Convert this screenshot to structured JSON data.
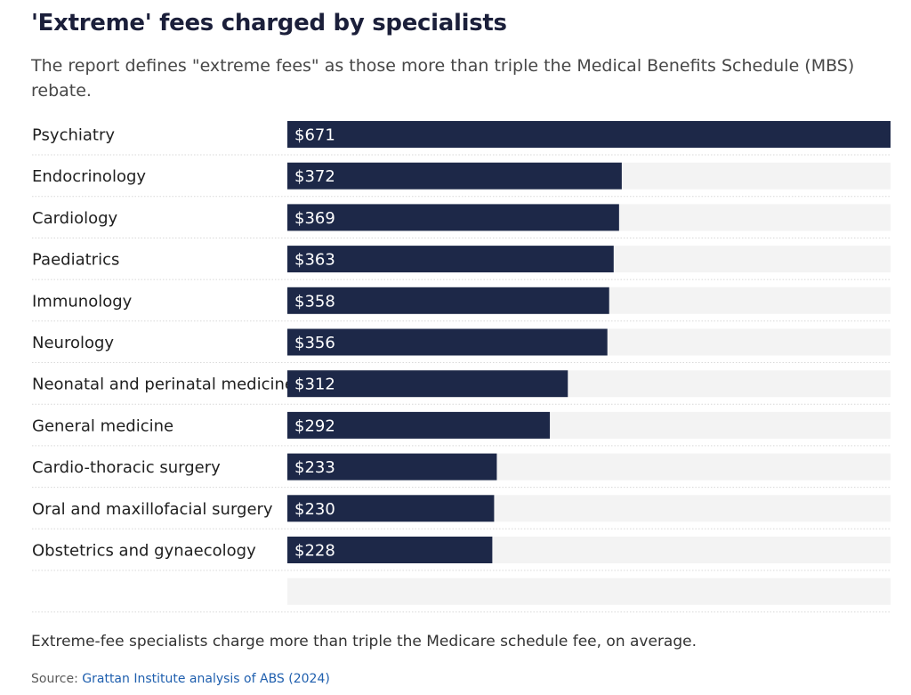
{
  "title": "'Extreme' fees charged by specialists",
  "subtitle": "The report defines \"extreme fees\" as those more than triple the Medical Benefits Schedule (MBS) rebate.",
  "footnote": "Extreme-fee specialists charge more than triple the Medicare schedule fee, on average.",
  "source_label": "Source:",
  "source_link": "Grattan Institute analysis of ABS (2024)",
  "colors": {
    "bar": "#1d2848",
    "track": "#f3f3f3",
    "label_text": "#ffffff",
    "category_text": "#1f1f1f",
    "separator": "#d8d8d8"
  },
  "chart_data": {
    "type": "bar",
    "orientation": "horizontal",
    "categories": [
      "Psychiatry",
      "Endocrinology",
      "Cardiology",
      "Paediatrics",
      "Immunology",
      "Neurology",
      "Neonatal and perinatal medicine",
      "General medicine",
      "Cardio-thoracic surgery",
      "Oral and maxillofacial surgery",
      "Obstetrics and gynaecology",
      ""
    ],
    "values": [
      671,
      372,
      369,
      363,
      358,
      356,
      312,
      292,
      233,
      230,
      228,
      null
    ],
    "value_labels": [
      "$671",
      "$372",
      "$369",
      "$363",
      "$358",
      "$356",
      "$312",
      "$292",
      "$233",
      "$230",
      "$228",
      ""
    ],
    "xlim": [
      0,
      671
    ],
    "grid": false,
    "legend": "none"
  }
}
